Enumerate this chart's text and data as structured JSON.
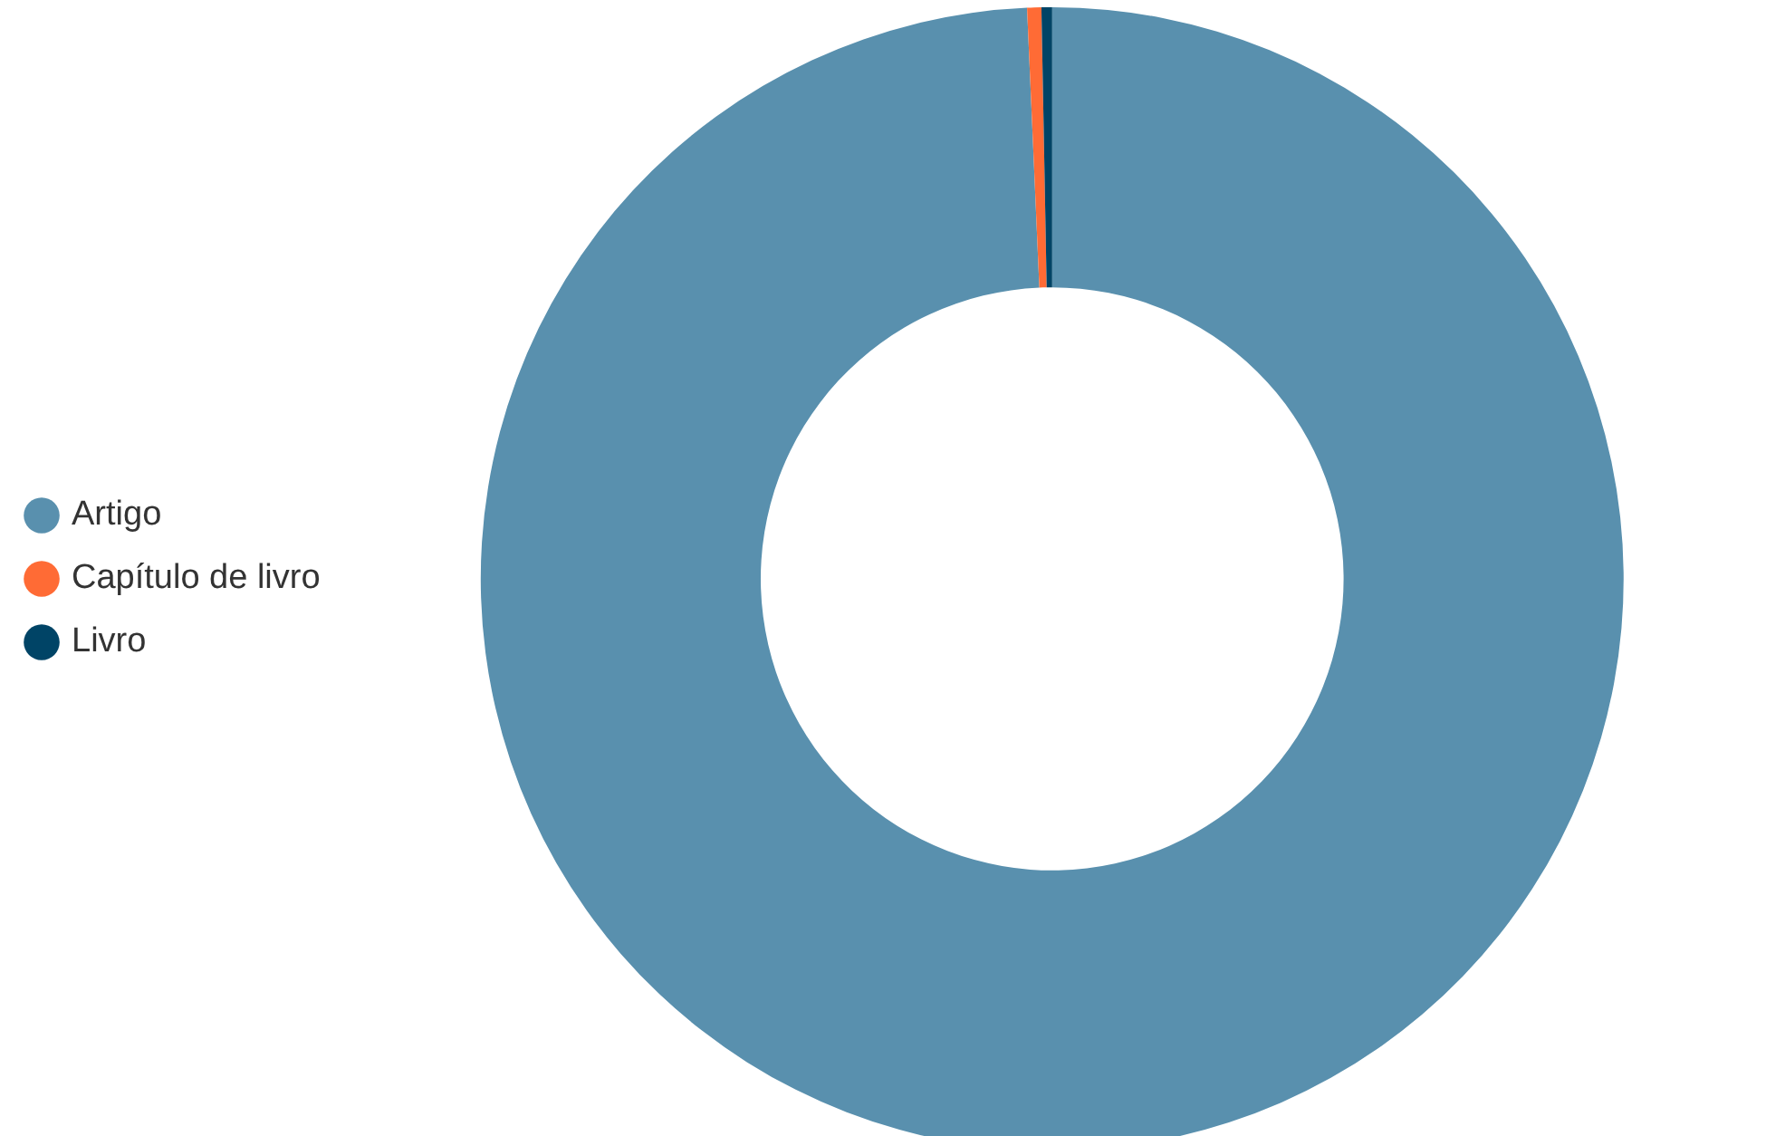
{
  "chart_data": {
    "type": "donut",
    "categories": [
      "Artigo",
      "Capítulo de livro",
      "Livro"
    ],
    "values": [
      99.3,
      0.4,
      0.3
    ],
    "colors": [
      "#5990ae",
      "#ff6b35",
      "#004466"
    ],
    "legend": "left"
  }
}
